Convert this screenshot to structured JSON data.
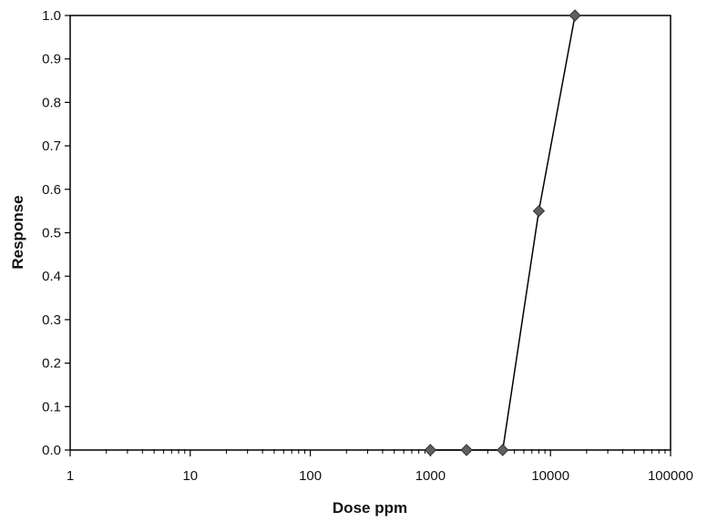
{
  "chart_data": {
    "type": "line",
    "title": "",
    "xlabel": "Dose ppm",
    "ylabel": "Response",
    "x_scale": "log",
    "xlim": [
      1,
      100000
    ],
    "ylim": [
      0,
      1.0
    ],
    "x_ticks": [
      "1",
      "10",
      "100",
      "1000",
      "10000",
      "100000"
    ],
    "y_ticks": [
      "0.0",
      "0.1",
      "0.2",
      "0.3",
      "0.4",
      "0.5",
      "0.6",
      "0.7",
      "0.8",
      "0.9",
      "1.0"
    ],
    "grid": false,
    "series": [
      {
        "x": [
          1000,
          2000,
          4000,
          8000,
          16000
        ],
        "y": [
          0.0,
          0.0,
          0.0,
          0.55,
          1.0
        ],
        "color": "#5f5f5f",
        "marker": "diamond"
      }
    ]
  }
}
